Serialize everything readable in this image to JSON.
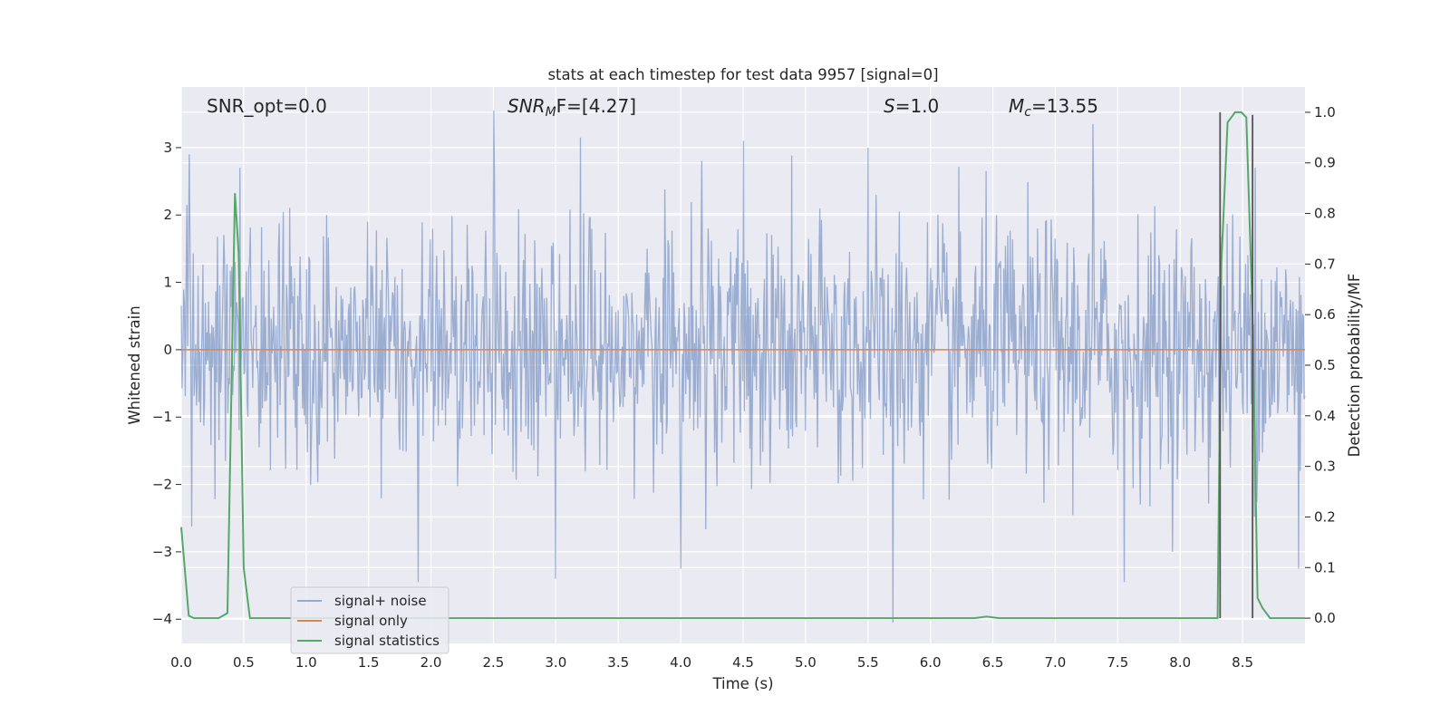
{
  "chart_data": {
    "type": "line",
    "title": "stats at each timestep for test data 9957 [signal=0]",
    "xlabel": "Time (s)",
    "ylabel_left": "Whitened strain",
    "ylabel_right": "Detection probability/MF",
    "xlim": [
      0,
      9.0
    ],
    "ylim_left": [
      -4.36,
      3.9
    ],
    "ylim_right": [
      -0.05,
      1.05
    ],
    "x_ticks": [
      "0.0",
      "0.5",
      "1.0",
      "1.5",
      "2.0",
      "2.5",
      "3.0",
      "3.5",
      "4.0",
      "4.5",
      "5.0",
      "5.5",
      "6.0",
      "6.5",
      "7.0",
      "7.5",
      "8.0",
      "8.5"
    ],
    "x_tick_values": [
      0,
      0.5,
      1.0,
      1.5,
      2.0,
      2.5,
      3.0,
      3.5,
      4.0,
      4.5,
      5.0,
      5.5,
      6.0,
      6.5,
      7.0,
      7.5,
      8.0,
      8.5
    ],
    "y_left_ticks": [
      "3",
      "2",
      "1",
      "0",
      "−1",
      "−2",
      "−3",
      "−4"
    ],
    "y_left_tick_values": [
      3,
      2,
      1,
      0,
      -1,
      -2,
      -3,
      -4
    ],
    "y_right_ticks": [
      "1.0",
      "0.9",
      "0.8",
      "0.7",
      "0.6",
      "0.5",
      "0.4",
      "0.3",
      "0.2",
      "0.1",
      "0.0"
    ],
    "y_right_tick_values": [
      1.0,
      0.9,
      0.8,
      0.7,
      0.6,
      0.5,
      0.4,
      0.3,
      0.2,
      0.1,
      0.0
    ],
    "grid": true,
    "legend_position": "lower-left",
    "annotations": {
      "snr_opt": "SNR_opt=0.0",
      "snr_mf": "SNR",
      "snr_mf_sub": "M",
      "snr_mf_tail": "F=[4.27]",
      "s_stat": "S",
      "s_stat_tail": "=1.0",
      "mc": "M",
      "mc_sub": "c",
      "mc_tail": "=13.55"
    },
    "series": [
      {
        "name": "signal+ noise",
        "color": "#4c72b0",
        "kind": "noise",
        "envelope_typical": [
          -1.6,
          1.8
        ],
        "notable_peaks": [
          [
            0.47,
            2.7
          ],
          [
            2.5,
            3.55
          ],
          [
            3.2,
            3.15
          ],
          [
            4.5,
            3.1
          ],
          [
            5.5,
            3.0
          ],
          [
            5.7,
            3.25
          ],
          [
            7.3,
            3.35
          ],
          [
            8.6,
            2.7
          ],
          [
            1.9,
            -3.45
          ],
          [
            3.0,
            -3.4
          ],
          [
            4.0,
            -3.25
          ],
          [
            5.7,
            -4.05
          ],
          [
            7.55,
            -3.45
          ],
          [
            8.95,
            -3.25
          ]
        ]
      },
      {
        "name": "signal only",
        "color": "#dd8452",
        "kind": "constant",
        "value": 0.0
      },
      {
        "name": "signal statistics",
        "color": "#55a868",
        "kind": "line",
        "axis": "right",
        "x": [
          0.0,
          0.06,
          0.1,
          0.15,
          0.3,
          0.37,
          0.43,
          0.46,
          0.5,
          0.55,
          0.6,
          6.35,
          6.45,
          6.55,
          8.3,
          8.33,
          8.38,
          8.44,
          8.49,
          8.53,
          8.58,
          8.62,
          8.66,
          8.72,
          9.0
        ],
        "y": [
          0.18,
          0.005,
          0.0,
          0.0,
          0.0,
          0.01,
          0.84,
          0.72,
          0.1,
          0.0,
          0.0,
          0.0,
          0.003,
          0.0,
          0.0,
          0.7,
          0.98,
          1.0,
          1.0,
          0.99,
          0.6,
          0.04,
          0.02,
          0.0,
          0.0
        ]
      }
    ],
    "vertical_lines": [
      {
        "x": 8.32,
        "y_top": 1.0,
        "color": "#555555"
      },
      {
        "x": 8.58,
        "y_top": 0.995,
        "color": "#555555"
      }
    ]
  }
}
